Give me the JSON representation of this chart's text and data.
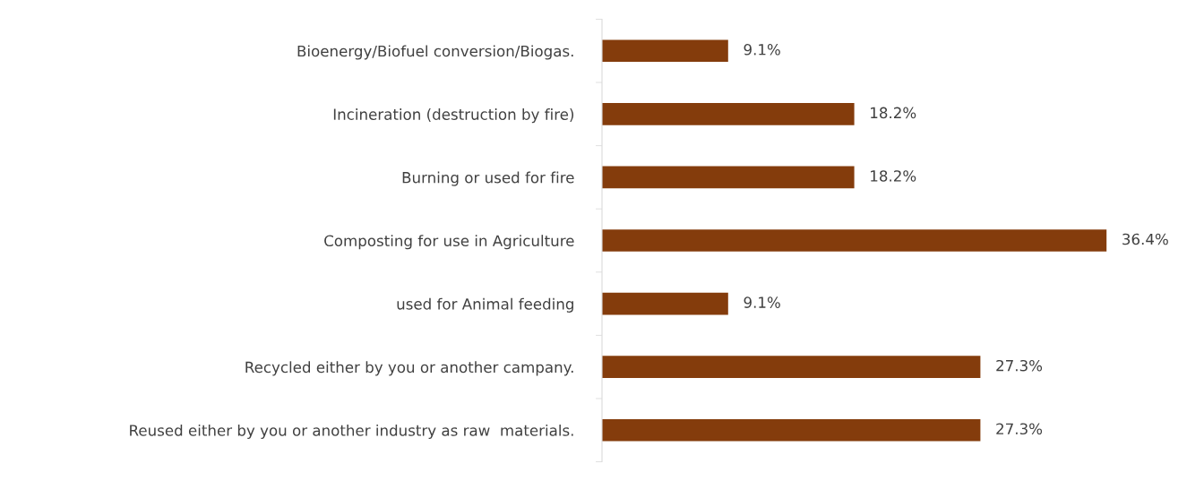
{
  "chart_data": {
    "type": "bar",
    "orientation": "horizontal",
    "categories": [
      "Bioenergy/Biofuel conversion/Biogas.",
      "Incineration (destruction by fire)",
      "Burning or used for fire",
      "Composting for use in Agriculture",
      "used for Animal feeding",
      "Recycled either by you or another campany.",
      "Reused either by you or another industry as raw  materials."
    ],
    "values": [
      9.1,
      18.2,
      18.2,
      36.4,
      9.1,
      27.3,
      27.3
    ],
    "value_labels": [
      "9.1%",
      "18.2%",
      "18.2%",
      "36.4%",
      "9.1%",
      "27.3%",
      "27.3%"
    ],
    "color": "#843c0c",
    "tick_labels": "y"
  }
}
